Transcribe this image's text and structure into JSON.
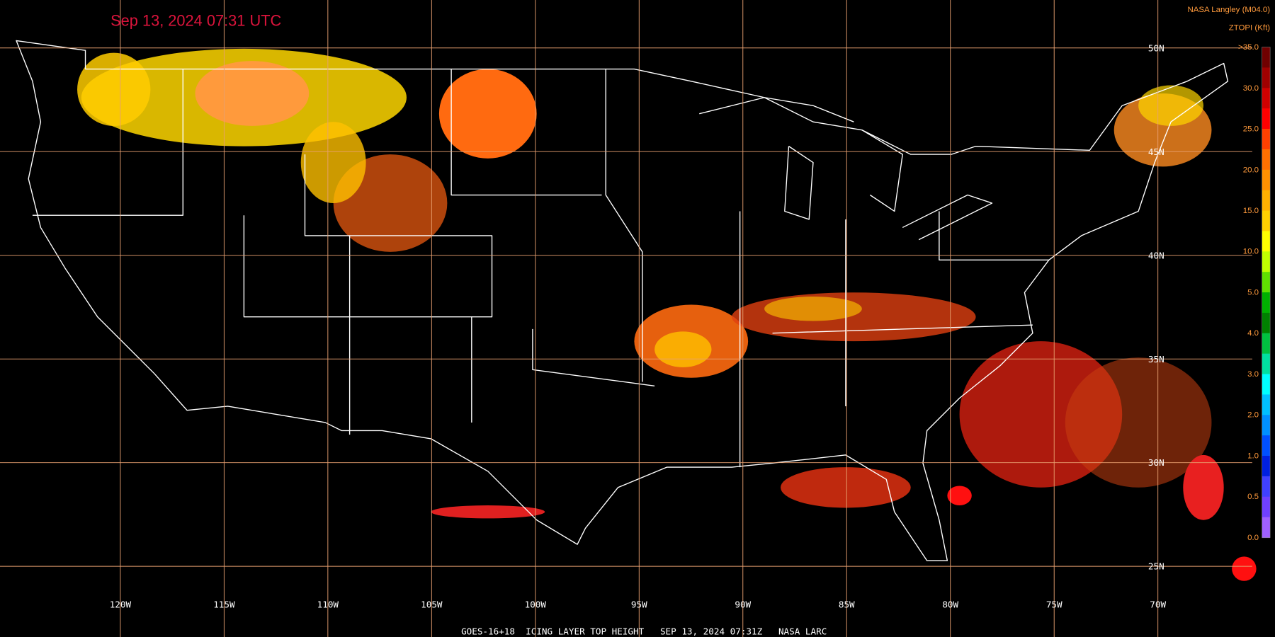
{
  "header": {
    "title": "Sep 13, 2024 07:31 UTC",
    "source": "NASA Langley (M04.0)",
    "product": "ZTOPI (Kft)"
  },
  "map": {
    "longitude_labels": [
      "120W",
      "115W",
      "110W",
      "105W",
      "100W",
      "95W",
      "90W",
      "85W",
      "80W",
      "75W",
      "70W"
    ],
    "latitude_labels": [
      "50N",
      "45N",
      "40N",
      "35N",
      "30N",
      "25N"
    ]
  },
  "colorbar": {
    "labels": [
      ">35.0",
      "30.0",
      "25.0",
      "20.0",
      "15.0",
      "10.0",
      "5.0",
      "4.0",
      "3.0",
      "2.0",
      "1.0",
      "0.5",
      "0.0"
    ]
  },
  "footer": {
    "caption": "GOES-16+18  ICING LAYER TOP HEIGHT   SEP 13, 2024 07:31Z   NASA LARC"
  }
}
